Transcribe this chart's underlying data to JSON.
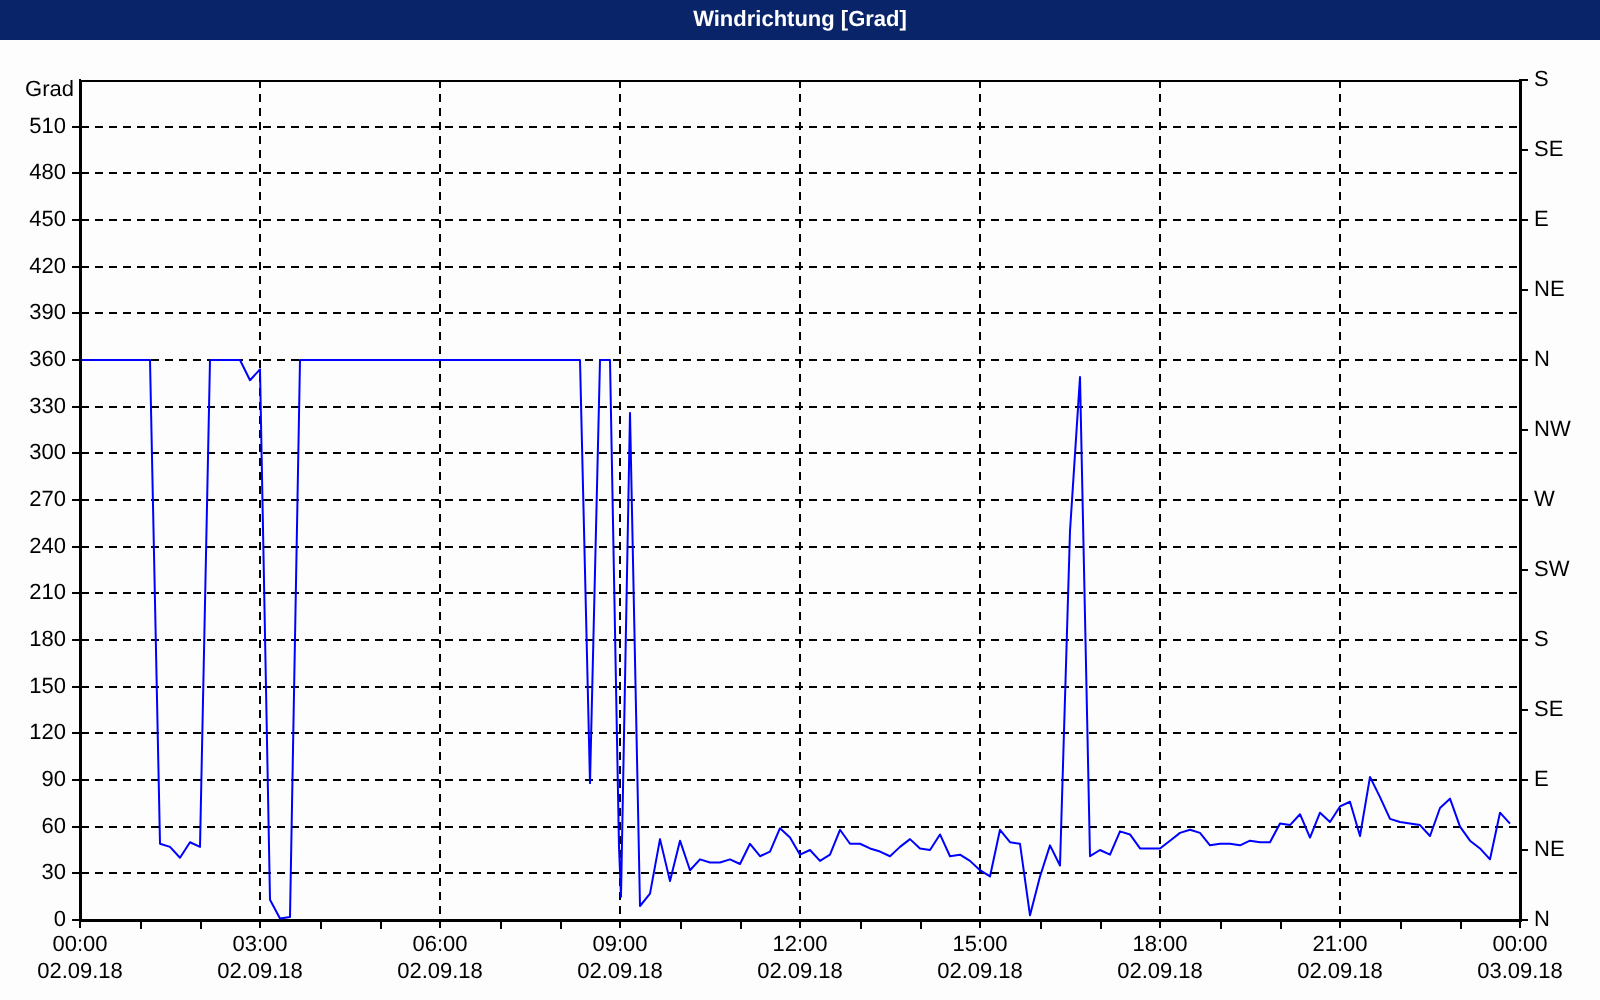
{
  "chart_data": {
    "type": "line",
    "title": "Windrichtung [Grad]",
    "ylabel": "Grad",
    "color": "#0000ff",
    "marker": "none",
    "line_style": "solid",
    "grid": true,
    "xlim": [
      "--09-02T00:00",
      "--09-03T00:00"
    ],
    "xticks": [
      {
        "value": "--09-02T00:00",
        "label": "00:00\n02.09.18"
      },
      {
        "value": "--09-02T01:00",
        "label": null
      },
      {
        "value": "--09-02T02:00",
        "label": null
      },
      {
        "value": "--09-02T03:00",
        "label": "03:00\n02.09.18"
      },
      {
        "value": "--09-02T04:00",
        "label": null
      },
      {
        "value": "--09-02T05:00",
        "label": null
      },
      {
        "value": "--09-02T06:00",
        "label": "06:00\n02.09.18"
      },
      {
        "value": "--09-02T07:00",
        "label": null
      },
      {
        "value": "--09-02T08:00",
        "label": null
      },
      {
        "value": "--09-02T09:00",
        "label": "09:00\n02.09.18"
      },
      {
        "value": "--09-02T10:00",
        "label": null
      },
      {
        "value": "--09-02T11:00",
        "label": null
      },
      {
        "value": "--09-02T12:00",
        "label": "12:00\n02.09.18"
      },
      {
        "value": "--09-02T13:00",
        "label": null
      },
      {
        "value": "--09-02T14:00",
        "label": null
      },
      {
        "value": "--09-02T15:00",
        "label": "15:00\n02.09.18"
      },
      {
        "value": "--09-02T16:00",
        "label": null
      },
      {
        "value": "--09-02T17:00",
        "label": null
      },
      {
        "value": "--09-02T18:00",
        "label": "18:00\n02.09.18"
      },
      {
        "value": "--09-02T19:00",
        "label": null
      },
      {
        "value": "--09-02T20:00",
        "label": null
      },
      {
        "value": "--09-02T21:00",
        "label": "21:00\n02.09.18"
      },
      {
        "value": "--09-02T22:00",
        "label": null
      },
      {
        "value": "--09-02T23:00",
        "label": null
      },
      {
        "value": "--09-03T00:00",
        "label": "00:00\n03.09.18"
      }
    ],
    "ylim": [
      0,
      540
    ],
    "yticks": [
      0,
      30,
      60,
      90,
      120,
      150,
      180,
      210,
      240,
      270,
      300,
      330,
      360,
      390,
      420,
      450,
      480,
      510
    ],
    "y2_categories": [
      "S",
      "SE",
      "E",
      "NE",
      "N",
      "NW",
      "W",
      "SW",
      "S",
      "SE",
      "E",
      "NE",
      "N"
    ],
    "x": [
      "--09-02T00:00",
      "--09-02T01:10",
      "--09-02T01:20",
      "--09-02T01:30",
      "--09-02T01:40",
      "--09-02T01:50",
      "--09-02T02:00",
      "--09-02T02:10",
      "--09-02T02:40",
      "--09-02T02:50",
      "--09-02T03:00",
      "--09-02T03:10",
      "--09-02T03:20",
      "--09-02T03:30",
      "--09-02T03:40",
      "--09-02T08:20",
      "--09-02T08:30",
      "--09-02T08:40",
      "--09-02T08:50",
      "--09-02T08:59",
      "--09-02T09:01",
      "--09-02T09:10",
      "--09-02T09:20",
      "--09-02T09:30",
      "--09-02T09:40",
      "--09-02T09:50",
      "--09-02T10:00",
      "--09-02T10:10",
      "--09-02T10:20",
      "--09-02T10:30",
      "--09-02T10:40",
      "--09-02T10:50",
      "--09-02T11:00",
      "--09-02T11:10",
      "--09-02T11:20",
      "--09-02T11:30",
      "--09-02T11:40",
      "--09-02T11:50",
      "--09-02T12:00",
      "--09-02T12:10",
      "--09-02T12:20",
      "--09-02T12:30",
      "--09-02T12:40",
      "--09-02T12:50",
      "--09-02T13:00",
      "--09-02T13:10",
      "--09-02T13:20",
      "--09-02T13:30",
      "--09-02T13:40",
      "--09-02T13:50",
      "--09-02T14:00",
      "--09-02T14:10",
      "--09-02T14:20",
      "--09-02T14:30",
      "--09-02T14:40",
      "--09-02T14:50",
      "--09-02T15:00",
      "--09-02T15:10",
      "--09-02T15:20",
      "--09-02T15:30",
      "--09-02T15:40",
      "--09-02T15:50",
      "--09-02T16:00",
      "--09-02T16:10",
      "--09-02T16:20",
      "--09-02T16:30",
      "--09-02T16:40",
      "--09-02T16:50",
      "--09-02T17:00",
      "--09-02T17:10",
      "--09-02T17:20",
      "--09-02T17:30",
      "--09-02T17:40",
      "--09-02T17:50",
      "--09-02T18:00",
      "--09-02T18:10",
      "--09-02T18:20",
      "--09-02T18:30",
      "--09-02T18:40",
      "--09-02T18:50",
      "--09-02T19:00",
      "--09-02T19:10",
      "--09-02T19:20",
      "--09-02T19:30",
      "--09-02T19:40",
      "--09-02T19:50",
      "--09-02T20:00",
      "--09-02T20:10",
      "--09-02T20:20",
      "--09-02T20:30",
      "--09-02T20:40",
      "--09-02T20:50",
      "--09-02T21:00",
      "--09-02T21:10",
      "--09-02T21:20",
      "--09-02T21:30",
      "--09-02T21:40",
      "--09-02T21:50",
      "--09-02T22:00",
      "--09-02T22:10",
      "--09-02T22:20",
      "--09-02T22:30",
      "--09-02T22:40",
      "--09-02T22:50",
      "--09-02T23:00",
      "--09-02T23:10",
      "--09-02T23:20",
      "--09-02T23:30",
      "--09-02T23:40",
      "--09-02T23:50"
    ],
    "values": [
      360,
      360,
      49,
      47,
      40,
      50,
      47,
      360,
      360,
      347,
      354,
      13,
      1,
      2,
      360,
      360,
      88,
      360,
      360,
      47,
      15,
      326,
      9,
      17,
      52,
      25,
      51,
      32,
      39,
      37,
      37,
      39,
      36,
      49,
      41,
      44,
      59,
      53,
      42,
      45,
      38,
      42,
      58,
      49,
      49,
      46,
      44,
      41,
      47,
      52,
      46,
      45,
      55,
      41,
      42,
      38,
      32,
      28,
      58,
      50,
      49,
      3,
      28,
      48,
      35,
      250,
      349,
      41,
      45,
      42,
      57,
      55,
      46,
      46,
      46,
      51,
      56,
      58,
      56,
      48,
      49,
      49,
      48,
      51,
      50,
      50,
      62,
      61,
      68,
      53,
      69,
      63,
      73,
      76,
      54,
      92,
      79,
      65,
      63,
      62,
      61,
      54,
      72,
      78,
      60,
      51,
      46,
      39,
      69,
      62
    ]
  }
}
